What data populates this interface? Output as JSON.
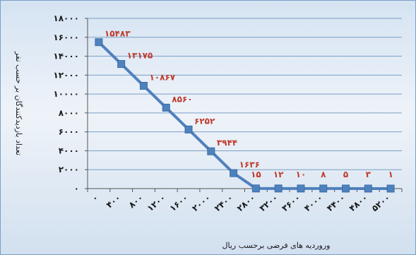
{
  "chart_data": {
    "type": "line",
    "title": "",
    "xlabel": "وروردیه های فرضی برحسب ریال",
    "ylabel": "تعداد بازدیدکنندگان بر حسب نفر",
    "ylim": [
      0,
      18000
    ],
    "y_ticks": [
      "۰",
      "۲۰۰۰",
      "۴۰۰۰",
      "۶۰۰۰",
      "۸۰۰۰",
      "۱۰۰۰۰",
      "۱۲۰۰۰",
      "۱۴۰۰۰",
      "۱۶۰۰۰",
      "۱۸۰۰۰"
    ],
    "y_tick_values": [
      0,
      2000,
      4000,
      6000,
      8000,
      10000,
      12000,
      14000,
      16000,
      18000
    ],
    "categories": [
      "۰",
      "۴۰۰",
      "۸۰۰",
      "۱۲۰۰",
      "۱۶۰۰",
      "۲۰۰۰",
      "۲۴۰۰",
      "۲۸۰۰",
      "۳۲۰۰",
      "۳۶۰۰",
      "۴۰۰۰",
      "۴۴۰۰",
      "۴۸۰۰",
      "۵۲۰۰"
    ],
    "grid": true,
    "legend": "none",
    "series": [
      {
        "values": [
          15483,
          13175,
          10867,
          8560,
          6252,
          3944,
          1636,
          15,
          12,
          10,
          8,
          5,
          3,
          1
        ],
        "labels": [
          "۱۵۴۸۳",
          "۱۳۱۷۵",
          "۱۰۸۶۷",
          "۸۵۶۰",
          "۶۲۵۲",
          "۳۹۴۴",
          "۱۶۳۶",
          "۱۵",
          "۱۲",
          "۱۰",
          "۸",
          "۵",
          "۳",
          "۱"
        ],
        "color": "#4f81bd"
      }
    ],
    "colors": {
      "line": "#4f81bd",
      "data_label": "#c0392b",
      "grid": "#7a9fc6",
      "axis_text": "#1a1a1a",
      "frame": "#7a9fc6"
    }
  }
}
